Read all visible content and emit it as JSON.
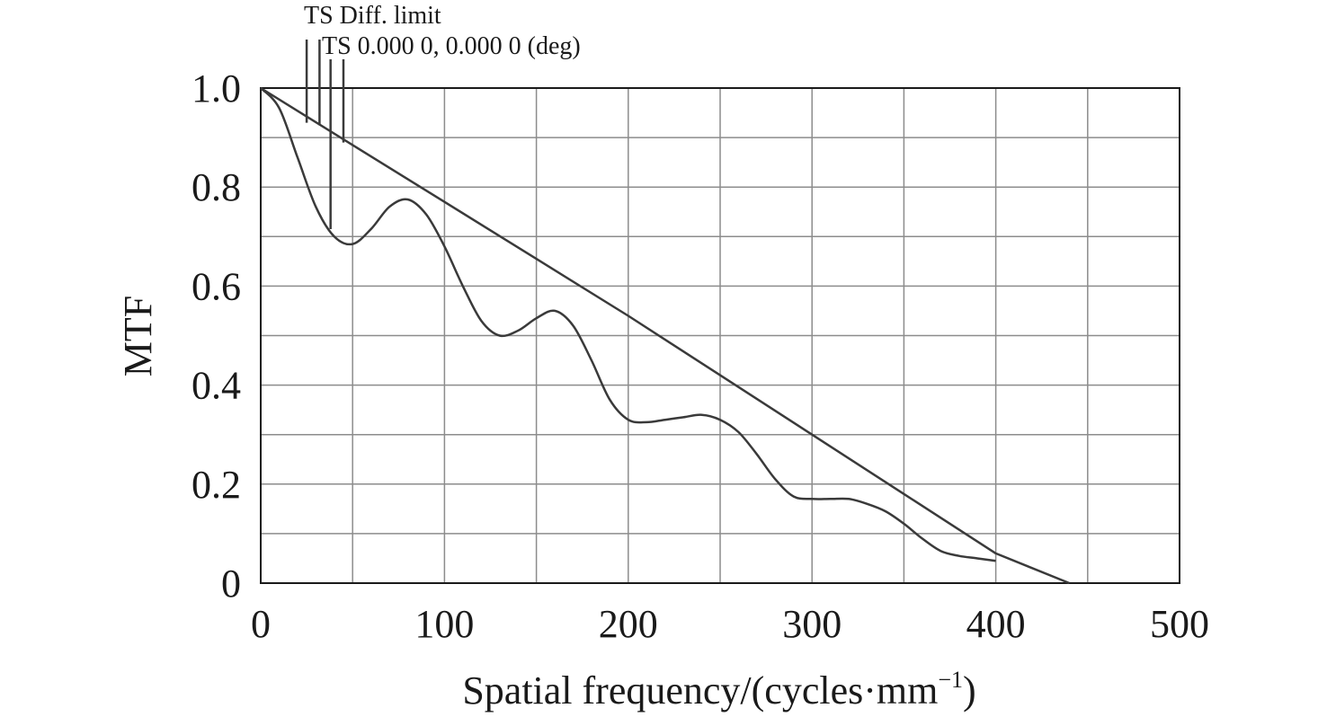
{
  "chart_data": {
    "type": "line",
    "xlabel": "Spatial frequency/(cycles·mm",
    "xlabel_sup": "−1",
    "xlabel_close": ")",
    "ylabel": "MTF",
    "xlim": [
      0,
      500
    ],
    "ylim": [
      0,
      1.0
    ],
    "x_ticks": [
      0,
      100,
      200,
      300,
      400,
      500
    ],
    "x_tick_labels": [
      "0",
      "100",
      "200",
      "300",
      "400",
      "500"
    ],
    "x_minor_grid": [
      50,
      150,
      250,
      350,
      450
    ],
    "y_ticks": [
      0,
      0.2,
      0.4,
      0.6,
      0.8,
      1.0
    ],
    "y_tick_labels": [
      "0",
      "0.2",
      "0.4",
      "0.6",
      "0.8",
      "1.0"
    ],
    "y_minor_grid": [
      0.1,
      0.3,
      0.5,
      0.7,
      0.9
    ],
    "grid": true,
    "legend": [
      {
        "label": "TS Diff. limit",
        "marker_x": [
          25,
          32
        ],
        "marker_y_end": [
          0.93,
          0.925
        ]
      },
      {
        "label": "TS 0.000 0, 0.000 0 (deg)",
        "marker_x": [
          38,
          45
        ],
        "marker_y_end": [
          0.715,
          0.89
        ]
      }
    ],
    "series": [
      {
        "x": [
          0,
          50,
          100,
          150,
          200,
          250,
          300,
          350,
          400,
          440
        ],
        "y": [
          1.0,
          0.885,
          0.77,
          0.655,
          0.54,
          0.42,
          0.3,
          0.18,
          0.06,
          0.0
        ]
      },
      {
        "x": [
          0,
          10,
          20,
          30,
          40,
          50,
          60,
          70,
          80,
          90,
          100,
          110,
          120,
          130,
          140,
          150,
          160,
          170,
          180,
          190,
          200,
          210,
          220,
          230,
          240,
          250,
          260,
          270,
          280,
          290,
          300,
          310,
          320,
          330,
          340,
          350,
          360,
          370,
          380,
          390,
          400
        ],
        "y": [
          1.0,
          0.96,
          0.86,
          0.76,
          0.7,
          0.685,
          0.715,
          0.76,
          0.775,
          0.745,
          0.68,
          0.6,
          0.53,
          0.5,
          0.51,
          0.535,
          0.55,
          0.52,
          0.45,
          0.37,
          0.33,
          0.325,
          0.33,
          0.335,
          0.34,
          0.33,
          0.305,
          0.26,
          0.21,
          0.175,
          0.17,
          0.17,
          0.17,
          0.16,
          0.145,
          0.12,
          0.09,
          0.065,
          0.055,
          0.05,
          0.045
        ]
      }
    ]
  }
}
